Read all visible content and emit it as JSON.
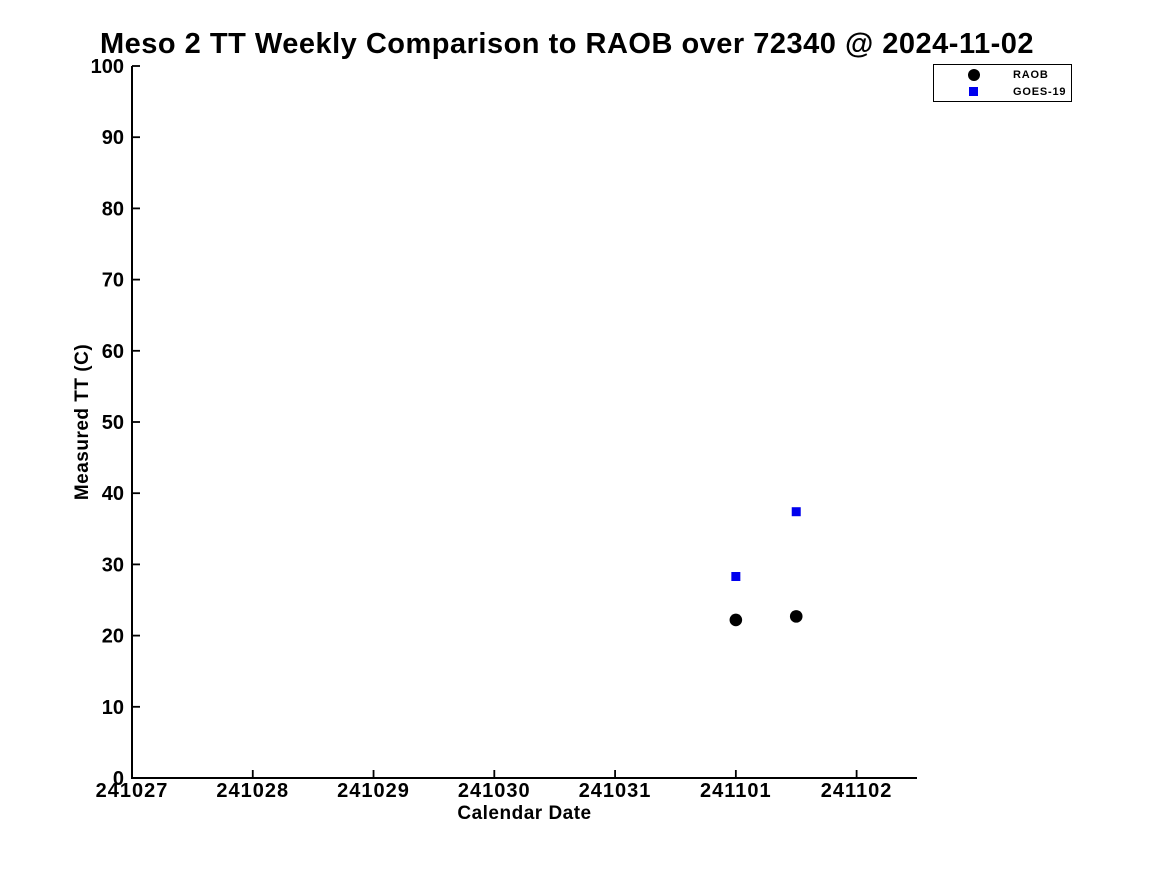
{
  "chart_data": {
    "type": "scatter",
    "title": "Meso 2 TT Weekly Comparison to RAOB over 72340 @ 2024-11-02",
    "xlabel": "Calendar Date",
    "ylabel": "Measured TT (C)",
    "x_tick_labels": [
      "241027",
      "241028",
      "241029",
      "241030",
      "241031",
      "241101",
      "241102"
    ],
    "x_range_days": [
      0,
      6.5
    ],
    "ylim": [
      0,
      100
    ],
    "y_tick_labels": [
      "0",
      "10",
      "20",
      "30",
      "40",
      "50",
      "60",
      "70",
      "80",
      "90",
      "100"
    ],
    "grid": "off",
    "axis_color": "#000000",
    "background_color": "#ffffff",
    "legend_position": "top-right",
    "series": [
      {
        "name": "RAOB",
        "marker": "circle",
        "color": "#000000",
        "points": [
          {
            "date": "241101",
            "hour": 0,
            "tt_c": 22.2
          },
          {
            "date": "241101",
            "hour": 12,
            "tt_c": 22.7
          }
        ]
      },
      {
        "name": "GOES-19",
        "marker": "square",
        "color": "#0000ee",
        "points": [
          {
            "date": "241101",
            "hour": 0,
            "tt_c": 28.3
          },
          {
            "date": "241101",
            "hour": 12,
            "tt_c": 37.4
          }
        ]
      }
    ]
  }
}
